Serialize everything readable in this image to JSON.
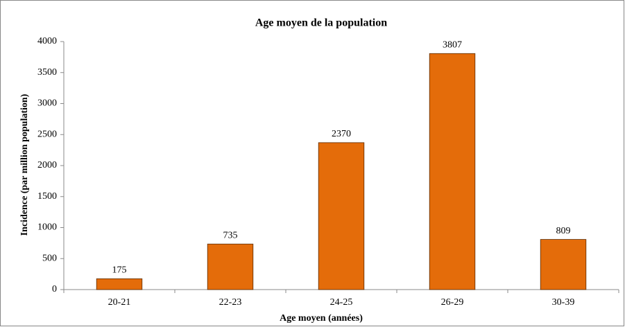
{
  "chart_data": {
    "type": "bar",
    "title": "Age moyen de la population",
    "x_label": "Age moyen (années)",
    "y_label": "Incidence (par million population)",
    "categories": [
      "20-21",
      "22-23",
      "24-25",
      "26-29",
      "30-39"
    ],
    "values": [
      175,
      735,
      2370,
      3807,
      809
    ],
    "color": "#e46c0a",
    "ylim": [
      0,
      4000
    ],
    "yticks": [
      0,
      500,
      1000,
      1500,
      2000,
      2500,
      3000,
      3500,
      4000
    ],
    "grid": false
  }
}
